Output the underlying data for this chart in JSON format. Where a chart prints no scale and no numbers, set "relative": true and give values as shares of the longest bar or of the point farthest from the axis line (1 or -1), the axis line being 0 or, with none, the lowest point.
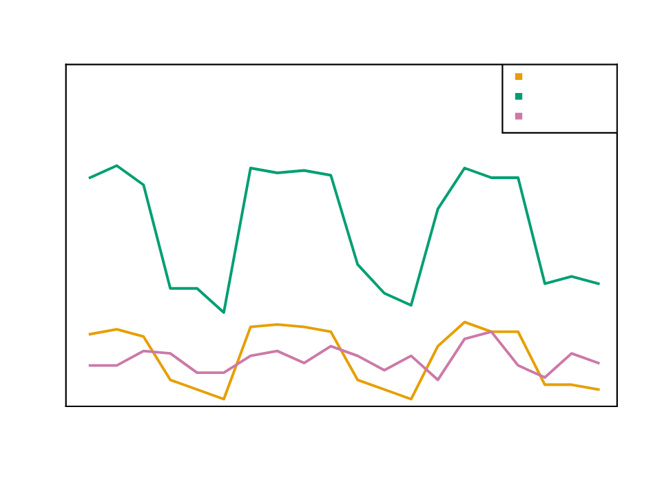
{
  "chart_data": {
    "type": "line",
    "relative": true,
    "categories": [
      null,
      null,
      null,
      null,
      null,
      null,
      null,
      null,
      null,
      null,
      null,
      null,
      null,
      null,
      null,
      null,
      null,
      null,
      null,
      null
    ],
    "series": [
      {
        "color": "#e69f00",
        "values": [
          0.3,
          0.32,
          0.29,
          0.11,
          0.07,
          0.03,
          0.33,
          0.34,
          0.33,
          0.31,
          0.11,
          0.07,
          0.03,
          0.25,
          0.35,
          0.31,
          0.31,
          0.09,
          0.09,
          0.07
        ]
      },
      {
        "color": "#009e73",
        "values": [
          0.95,
          1.0,
          0.92,
          0.49,
          0.49,
          0.39,
          0.99,
          0.97,
          0.98,
          0.96,
          0.59,
          0.47,
          0.42,
          0.82,
          0.99,
          0.95,
          0.95,
          0.51,
          0.54,
          0.51
        ]
      },
      {
        "color": "#cc79a7",
        "values": [
          0.17,
          0.17,
          0.23,
          0.22,
          0.14,
          0.14,
          0.21,
          0.23,
          0.18,
          0.25,
          0.21,
          0.15,
          0.21,
          0.11,
          0.28,
          0.31,
          0.17,
          0.12,
          0.22,
          0.18
        ]
      }
    ]
  }
}
